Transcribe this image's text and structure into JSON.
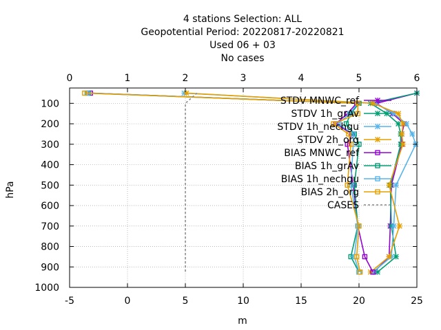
{
  "chart_data": {
    "type": "line",
    "title_lines": [
      "4 stations Selection: ALL",
      "Geopotential  Period: 20220817-20220821",
      "Used  06 + 03",
      "No cases"
    ],
    "xlabel": "m",
    "ylabel": "hPa",
    "xlim": [
      -5,
      25
    ],
    "x2lim": [
      0,
      6
    ],
    "ylim": [
      1000,
      25
    ],
    "y_reversed": true,
    "xticks": [
      "-5",
      "0",
      "5",
      "10",
      "15",
      "20",
      "25"
    ],
    "x2ticks": [
      "0",
      "1",
      "2",
      "3",
      "4",
      "5",
      "6"
    ],
    "yticks": [
      "100",
      "200",
      "300",
      "400",
      "500",
      "600",
      "700",
      "800",
      "900",
      "1000"
    ],
    "grid": true,
    "legend_position": "top-right",
    "series": [
      {
        "name": "STDV MNWC_ref",
        "color": "#9400d3",
        "marker": "x",
        "x": [
          25.0,
          21.5,
          22.9,
          23.9,
          23.7,
          23.7,
          22.8,
          22.7,
          22.6,
          21.3
        ],
        "y": [
          50,
          100,
          150,
          200,
          250,
          300,
          500,
          700,
          850,
          925
        ]
      },
      {
        "name": "STDV 1h_grAv",
        "color": "#009e73",
        "marker": "x",
        "x": [
          25.0,
          21.0,
          22.4,
          23.4,
          23.6,
          23.6,
          22.7,
          22.8,
          23.2,
          21.6
        ],
        "y": [
          50,
          100,
          150,
          200,
          250,
          300,
          500,
          700,
          850,
          925
        ]
      },
      {
        "name": "STDV 1h_nechgu",
        "color": "#56b4e9",
        "marker": "x",
        "x": [
          4.9,
          21.4,
          23.0,
          24.1,
          24.6,
          24.9,
          23.2,
          23.0,
          22.8,
          21.2
        ],
        "y": [
          50,
          100,
          150,
          200,
          250,
          300,
          500,
          700,
          850,
          925
        ]
      },
      {
        "name": "STDV 2h_org",
        "color": "#e69f00",
        "marker": "x",
        "x": [
          5.1,
          21.2,
          23.4,
          23.8,
          23.7,
          23.8,
          22.6,
          23.5,
          22.6,
          21.0
        ],
        "y": [
          50,
          100,
          150,
          200,
          250,
          300,
          500,
          700,
          850,
          925
        ]
      },
      {
        "name": "BIAS MNWC_ref",
        "color": "#9400d3",
        "marker": "square",
        "x": [
          -3.2,
          19.8,
          19.0,
          18.0,
          19.4,
          19.0,
          19.5,
          19.9,
          20.5,
          21.2
        ],
        "y": [
          50,
          100,
          150,
          200,
          250,
          300,
          500,
          700,
          850,
          925
        ]
      },
      {
        "name": "BIAS 1h_grAv",
        "color": "#009e73",
        "marker": "square",
        "x": [
          -3.4,
          20.0,
          19.3,
          18.9,
          19.6,
          20.0,
          19.6,
          19.9,
          19.3,
          20.0
        ],
        "y": [
          50,
          100,
          150,
          200,
          250,
          300,
          500,
          700,
          850,
          925
        ]
      },
      {
        "name": "BIAS 1h_nechgu",
        "color": "#56b4e9",
        "marker": "square",
        "x": [
          -3.5,
          19.9,
          19.2,
          18.2,
          19.5,
          19.5,
          19.3,
          19.9,
          19.6,
          20.0
        ],
        "y": [
          50,
          100,
          150,
          200,
          250,
          300,
          500,
          700,
          850,
          925
        ]
      },
      {
        "name": "BIAS 2h_org",
        "color": "#e69f00",
        "marker": "square",
        "x": [
          -3.7,
          19.9,
          19.9,
          17.8,
          19.1,
          19.3,
          19.0,
          20.0,
          19.8,
          20.1
        ],
        "y": [
          50,
          100,
          150,
          200,
          250,
          300,
          500,
          700,
          850,
          925
        ]
      },
      {
        "name": "CASES",
        "color": "#888888",
        "marker": "none",
        "dashed": true,
        "x": [
          6.0,
          5.0,
          5.0,
          5.0,
          5.0,
          5.0,
          5.0,
          5.0,
          5.0,
          5.0
        ],
        "y": [
          50,
          100,
          150,
          200,
          250,
          300,
          500,
          700,
          850,
          925
        ]
      }
    ]
  }
}
